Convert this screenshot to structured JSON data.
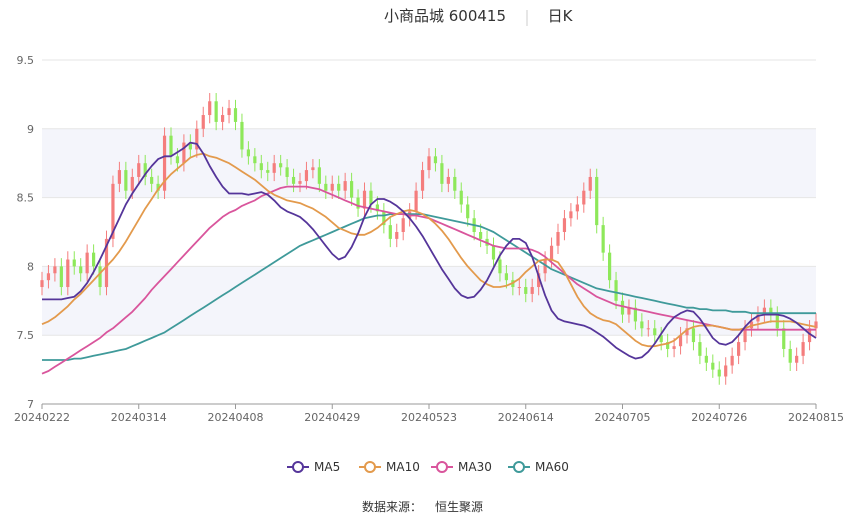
{
  "header": {
    "stock_title": "小商品城 600415",
    "period_label": "日K"
  },
  "footer": {
    "source_label": "数据来源：",
    "source_name": "恒生聚源"
  },
  "colors": {
    "up": "#f47d7d",
    "down": "#8ee85a",
    "ma5": "#55359a",
    "ma10": "#e39a4c",
    "ma30": "#d9559c",
    "ma60": "#3f9a9a",
    "band": "#f4f5fb",
    "grid": "#e6e6e6",
    "axis": "#999999"
  },
  "chart_data": {
    "type": "candlestick",
    "ylim": [
      7,
      9.5
    ],
    "yticks": [
      "7",
      "7.5",
      "8",
      "8.5",
      "9",
      "9.5"
    ],
    "ytick_values": [
      7,
      7.5,
      8,
      8.5,
      9,
      9.5
    ],
    "xticks": [
      "20240222",
      "20240314",
      "20240408",
      "20240429",
      "20240523",
      "20240614",
      "20240705",
      "20240726",
      "20240815"
    ],
    "xtick_index": [
      0,
      15,
      30,
      45,
      60,
      75,
      90,
      105,
      120
    ],
    "n_days": 121,
    "legend": [
      "MA5",
      "MA10",
      "MA30",
      "MA60"
    ],
    "candle_closes": [
      7.9,
      7.95,
      8.0,
      7.85,
      8.05,
      8.0,
      7.95,
      8.1,
      8.0,
      7.85,
      8.2,
      8.6,
      8.7,
      8.55,
      8.65,
      8.75,
      8.65,
      8.6,
      8.55,
      8.95,
      8.8,
      8.75,
      8.9,
      8.85,
      9.0,
      9.1,
      9.2,
      9.05,
      9.1,
      9.15,
      9.05,
      8.85,
      8.8,
      8.75,
      8.7,
      8.68,
      8.75,
      8.72,
      8.65,
      8.6,
      8.62,
      8.7,
      8.72,
      8.6,
      8.55,
      8.6,
      8.55,
      8.62,
      8.5,
      8.42,
      8.55,
      8.45,
      8.4,
      8.3,
      8.2,
      8.25,
      8.35,
      8.4,
      8.55,
      8.7,
      8.8,
      8.75,
      8.6,
      8.65,
      8.55,
      8.45,
      8.35,
      8.25,
      8.2,
      8.15,
      8.05,
      7.95,
      7.9,
      7.85,
      7.85,
      7.8,
      7.85,
      7.95,
      8.05,
      8.15,
      8.25,
      8.35,
      8.4,
      8.45,
      8.55,
      8.65,
      8.3,
      8.1,
      7.9,
      7.75,
      7.65,
      7.7,
      7.6,
      7.55,
      7.55,
      7.5,
      7.45,
      7.4,
      7.42,
      7.5,
      7.55,
      7.45,
      7.35,
      7.3,
      7.25,
      7.2,
      7.28,
      7.35,
      7.45,
      7.55,
      7.6,
      7.65,
      7.7,
      7.65,
      7.55,
      7.4,
      7.3,
      7.35,
      7.45,
      7.55,
      7.6
    ],
    "ma5": [
      7.76,
      7.76,
      7.76,
      7.76,
      7.77,
      7.78,
      7.82,
      7.88,
      7.96,
      8.05,
      8.15,
      8.25,
      8.35,
      8.45,
      8.53,
      8.6,
      8.67,
      8.73,
      8.78,
      8.8,
      8.8,
      8.83,
      8.86,
      8.9,
      8.89,
      8.82,
      8.73,
      8.65,
      8.58,
      8.53,
      8.53,
      8.53,
      8.52,
      8.53,
      8.54,
      8.52,
      8.48,
      8.43,
      8.4,
      8.38,
      8.36,
      8.32,
      8.27,
      8.21,
      8.15,
      8.09,
      8.05,
      8.07,
      8.14,
      8.24,
      8.36,
      8.45,
      8.49,
      8.49,
      8.47,
      8.44,
      8.4,
      8.35,
      8.29,
      8.22,
      8.14,
      8.06,
      7.98,
      7.91,
      7.84,
      7.79,
      7.77,
      7.78,
      7.83,
      7.9,
      7.99,
      8.08,
      8.15,
      8.2,
      8.2,
      8.17,
      8.07,
      7.93,
      7.79,
      7.68,
      7.62,
      7.6,
      7.59,
      7.58,
      7.57,
      7.55,
      7.52,
      7.49,
      7.45,
      7.41,
      7.38,
      7.35,
      7.33,
      7.34,
      7.38,
      7.44,
      7.51,
      7.58,
      7.63,
      7.66,
      7.68,
      7.67,
      7.62,
      7.55,
      7.48,
      7.44,
      7.43,
      7.45,
      7.5,
      7.56,
      7.61,
      7.64,
      7.65,
      7.65,
      7.65,
      7.64,
      7.62,
      7.59,
      7.55,
      7.51,
      7.48
    ],
    "ma10": [
      7.58,
      7.6,
      7.63,
      7.67,
      7.71,
      7.76,
      7.8,
      7.85,
      7.9,
      7.95,
      8.0,
      8.05,
      8.11,
      8.18,
      8.26,
      8.34,
      8.42,
      8.49,
      8.56,
      8.62,
      8.67,
      8.71,
      8.75,
      8.79,
      8.81,
      8.82,
      8.8,
      8.79,
      8.77,
      8.75,
      8.72,
      8.69,
      8.66,
      8.63,
      8.59,
      8.55,
      8.52,
      8.5,
      8.48,
      8.47,
      8.46,
      8.44,
      8.42,
      8.39,
      8.36,
      8.32,
      8.28,
      8.26,
      8.24,
      8.23,
      8.23,
      8.25,
      8.28,
      8.32,
      8.36,
      8.38,
      8.4,
      8.41,
      8.4,
      8.38,
      8.35,
      8.31,
      8.26,
      8.2,
      8.13,
      8.06,
      8.0,
      7.95,
      7.9,
      7.87,
      7.85,
      7.85,
      7.86,
      7.88,
      7.91,
      7.96,
      8.0,
      8.04,
      8.05,
      8.05,
      8.03,
      7.96,
      7.87,
      7.78,
      7.71,
      7.66,
      7.63,
      7.61,
      7.6,
      7.58,
      7.54,
      7.5,
      7.46,
      7.43,
      7.42,
      7.42,
      7.43,
      7.44,
      7.46,
      7.5,
      7.54,
      7.56,
      7.57,
      7.57,
      7.57,
      7.56,
      7.55,
      7.54,
      7.54,
      7.55,
      7.57,
      7.58,
      7.59,
      7.6,
      7.6,
      7.6,
      7.6,
      7.59,
      7.58,
      7.57,
      7.56
    ],
    "ma30": [
      7.22,
      7.24,
      7.27,
      7.3,
      7.33,
      7.36,
      7.39,
      7.42,
      7.45,
      7.48,
      7.52,
      7.55,
      7.59,
      7.63,
      7.67,
      7.72,
      7.77,
      7.83,
      7.88,
      7.93,
      7.98,
      8.03,
      8.08,
      8.13,
      8.18,
      8.23,
      8.28,
      8.32,
      8.36,
      8.39,
      8.41,
      8.44,
      8.46,
      8.48,
      8.51,
      8.53,
      8.55,
      8.57,
      8.58,
      8.58,
      8.58,
      8.58,
      8.57,
      8.56,
      8.54,
      8.52,
      8.5,
      8.48,
      8.46,
      8.44,
      8.43,
      8.42,
      8.41,
      8.4,
      8.39,
      8.38,
      8.38,
      8.37,
      8.37,
      8.36,
      8.35,
      8.33,
      8.31,
      8.29,
      8.27,
      8.25,
      8.23,
      8.21,
      8.19,
      8.17,
      8.15,
      8.14,
      8.13,
      8.13,
      8.13,
      8.13,
      8.12,
      8.1,
      8.07,
      8.03,
      7.99,
      7.95,
      7.91,
      7.87,
      7.84,
      7.81,
      7.78,
      7.76,
      7.74,
      7.72,
      7.71,
      7.7,
      7.69,
      7.68,
      7.67,
      7.66,
      7.65,
      7.64,
      7.63,
      7.62,
      7.61,
      7.6,
      7.59,
      7.58,
      7.57,
      7.56,
      7.55,
      7.54,
      7.54,
      7.54,
      7.54,
      7.54,
      7.54,
      7.54,
      7.54,
      7.54,
      7.54,
      7.54,
      7.54,
      7.54,
      7.54
    ],
    "ma60": [
      7.32,
      7.32,
      7.32,
      7.32,
      7.32,
      7.33,
      7.33,
      7.34,
      7.35,
      7.36,
      7.37,
      7.38,
      7.39,
      7.4,
      7.42,
      7.44,
      7.46,
      7.48,
      7.5,
      7.52,
      7.55,
      7.58,
      7.61,
      7.64,
      7.67,
      7.7,
      7.73,
      7.76,
      7.79,
      7.82,
      7.85,
      7.88,
      7.91,
      7.94,
      7.97,
      8.0,
      8.03,
      8.06,
      8.09,
      8.12,
      8.15,
      8.17,
      8.19,
      8.21,
      8.23,
      8.25,
      8.27,
      8.29,
      8.31,
      8.33,
      8.35,
      8.36,
      8.37,
      8.37,
      8.38,
      8.38,
      8.38,
      8.38,
      8.38,
      8.38,
      8.37,
      8.36,
      8.35,
      8.34,
      8.33,
      8.32,
      8.31,
      8.3,
      8.29,
      8.27,
      8.25,
      8.22,
      8.19,
      8.16,
      8.13,
      8.1,
      8.07,
      8.04,
      8.01,
      7.98,
      7.96,
      7.94,
      7.92,
      7.9,
      7.88,
      7.86,
      7.84,
      7.83,
      7.82,
      7.81,
      7.8,
      7.79,
      7.78,
      7.77,
      7.76,
      7.75,
      7.74,
      7.73,
      7.72,
      7.71,
      7.7,
      7.7,
      7.69,
      7.69,
      7.68,
      7.68,
      7.68,
      7.67,
      7.67,
      7.67,
      7.66,
      7.66,
      7.66,
      7.66,
      7.66,
      7.66,
      7.66,
      7.66,
      7.66,
      7.66,
      7.66
    ]
  }
}
